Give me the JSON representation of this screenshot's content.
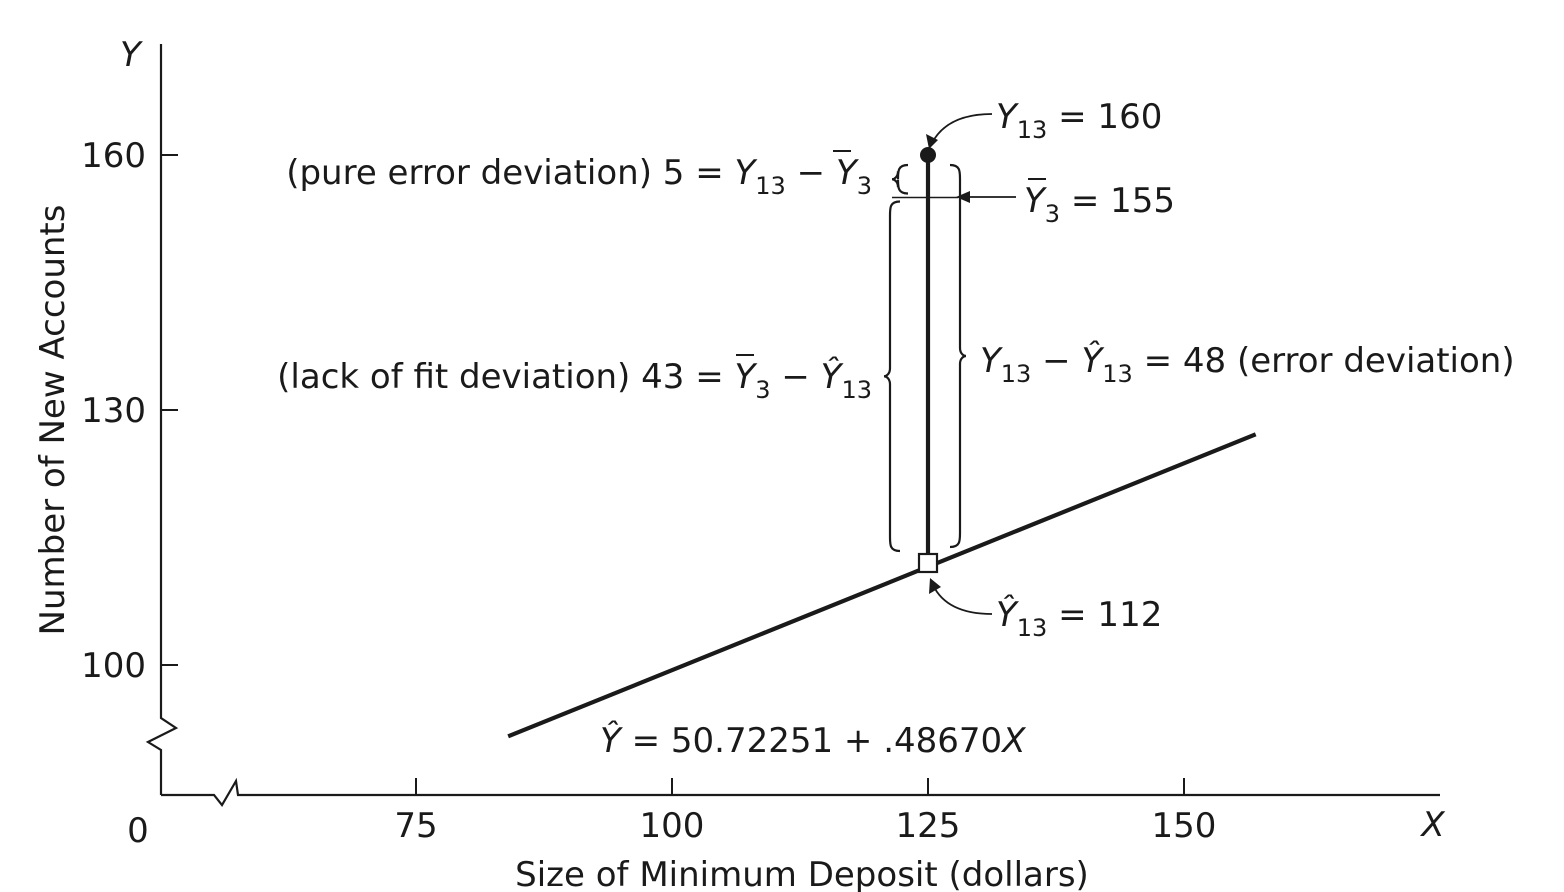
{
  "chart_data": {
    "type": "line",
    "title": "",
    "xlabel": "Size of Minimum Deposit (dollars)",
    "ylabel": "Number of New Accounts",
    "x_axis_symbol": "X",
    "y_axis_symbol": "Y",
    "origin_label": "0",
    "xlim": [
      50,
      175
    ],
    "ylim": [
      85,
      175
    ],
    "x_ticks": [
      75,
      100,
      125,
      150
    ],
    "y_ticks": [
      100,
      130,
      160
    ],
    "axis_breaks": true,
    "grid": false,
    "legend": "none",
    "series": [
      {
        "type": "line",
        "x": [
          84,
          157
        ],
        "intercept": 50.72251,
        "slope": 0.4867
      }
    ],
    "points": {
      "observed": {
        "x": 125,
        "y": 160,
        "marker": "filled-circle"
      },
      "group_mean": {
        "x": 125,
        "y": 155
      },
      "fitted": {
        "x": 125,
        "y": 112,
        "marker": "open-square"
      }
    },
    "annotations": {
      "y13": {
        "sym": "Y",
        "sub": "13",
        "rest": " = 160"
      },
      "ybar3": {
        "sym": "Y",
        "sub": "3",
        "rest": " = 155"
      },
      "yhat13": {
        "sym": "Ŷ",
        "sub": "13",
        "rest": " = 112"
      },
      "pure_error": {
        "prefix": "(pure error deviation) 5 = ",
        "a_sym": "Y",
        "a_sub": "13",
        "op": " − ",
        "b_sym": "Y",
        "b_sub": "3"
      },
      "lack_of_fit": {
        "prefix": "(lack of fit deviation) 43 = ",
        "a_sym": "Y",
        "a_sub": "3",
        "op": " − ",
        "b_sym": "Ŷ",
        "b_sub": "13"
      },
      "error_dev": {
        "a_sym": "Y",
        "a_sub": "13",
        "op": " − ",
        "b_sym": "Ŷ",
        "b_sub": "13",
        "suffix": " = 48 (error deviation)"
      },
      "equation": {
        "sym": "Ŷ",
        "rest": " = 50.72251 + .48670",
        "x": "X"
      }
    }
  }
}
